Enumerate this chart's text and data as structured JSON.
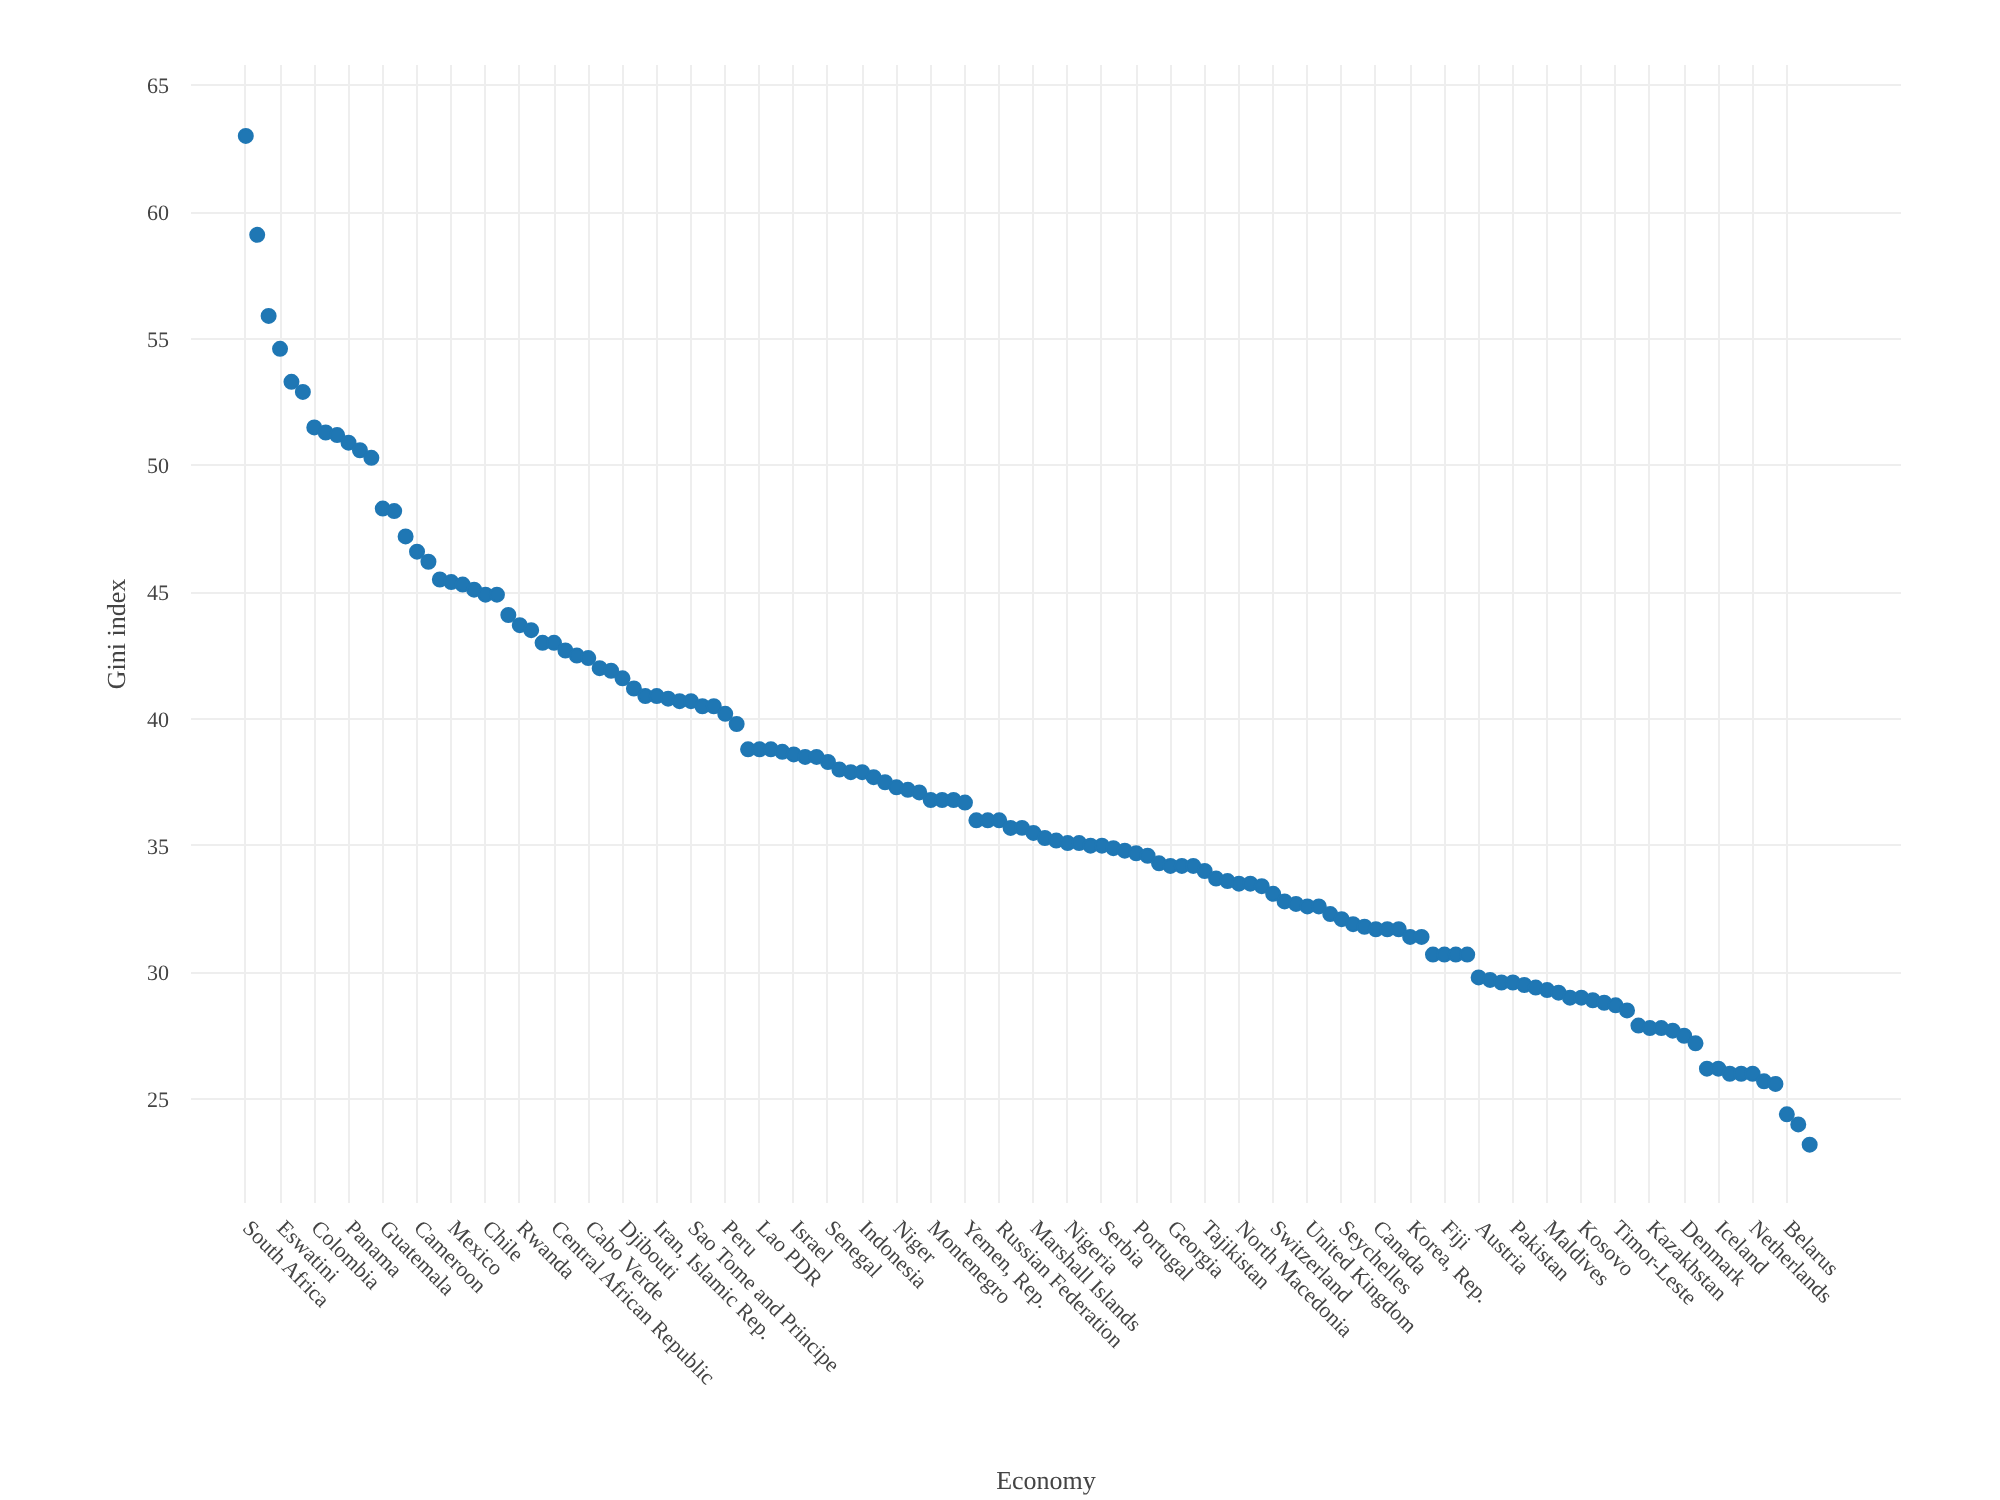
{
  "chart_data": {
    "type": "scatter",
    "xlabel": "Economy",
    "ylabel": "Gini index",
    "categories": [
      "South Africa",
      null,
      null,
      "Eswatini",
      null,
      null,
      "Colombia",
      null,
      null,
      "Panama",
      null,
      null,
      "Guatemala",
      null,
      null,
      "Cameroon",
      null,
      null,
      "Mexico",
      null,
      null,
      "Chile",
      null,
      null,
      "Rwanda",
      null,
      null,
      "Central African Republic",
      null,
      null,
      "Cabo Verde",
      null,
      null,
      "Djibouti",
      null,
      null,
      "Iran, Islamic Rep.",
      null,
      null,
      "Sao Tome and Principe",
      null,
      null,
      "Peru",
      null,
      null,
      "Lao PDR",
      null,
      null,
      "Israel",
      null,
      null,
      "Senegal",
      null,
      null,
      "Indonesia",
      null,
      null,
      "Niger",
      null,
      null,
      "Montenegro",
      null,
      null,
      "Yemen, Rep.",
      null,
      null,
      "Russian Federation",
      null,
      null,
      "Marshall Islands",
      null,
      null,
      "Nigeria",
      null,
      null,
      "Serbia",
      null,
      null,
      "Portugal",
      null,
      null,
      "Georgia",
      null,
      null,
      "Tajikistan",
      null,
      null,
      "North Macedonia",
      null,
      null,
      "Switzerland",
      null,
      null,
      "United Kingdom",
      null,
      null,
      "Seychelles",
      null,
      null,
      "Canada",
      null,
      null,
      "Korea, Rep.",
      null,
      null,
      "Fiji",
      null,
      null,
      "Austria",
      null,
      null,
      "Pakistan",
      null,
      null,
      "Maldives",
      null,
      null,
      "Kosovo",
      null,
      null,
      "Timor-Leste",
      null,
      null,
      "Kazakhstan",
      null,
      null,
      "Denmark",
      null,
      null,
      "Iceland",
      null,
      null,
      "Netherlands",
      null,
      null,
      "Belarus",
      null,
      null
    ],
    "series": [
      {
        "color": "#1f77b4",
        "values": [
          63.0,
          59.1,
          55.9,
          54.6,
          53.3,
          52.9,
          51.5,
          51.3,
          51.2,
          50.9,
          50.6,
          50.3,
          48.3,
          48.2,
          47.2,
          46.6,
          46.2,
          45.5,
          45.4,
          45.3,
          45.1,
          44.9,
          44.9,
          44.1,
          43.7,
          43.5,
          43.0,
          43.0,
          42.7,
          42.5,
          42.4,
          42.0,
          41.9,
          41.6,
          41.2,
          40.9,
          40.9,
          40.8,
          40.7,
          40.7,
          40.5,
          40.5,
          40.2,
          39.8,
          38.8,
          38.8,
          38.8,
          38.7,
          38.6,
          38.5,
          38.5,
          38.3,
          38.0,
          37.9,
          37.9,
          37.7,
          37.5,
          37.3,
          37.2,
          37.1,
          36.8,
          36.8,
          36.8,
          36.7,
          36.0,
          36.0,
          36.0,
          35.7,
          35.7,
          35.5,
          35.3,
          35.2,
          35.1,
          35.1,
          35.0,
          35.0,
          34.9,
          34.8,
          34.7,
          34.6,
          34.3,
          34.2,
          34.2,
          34.2,
          34.0,
          33.7,
          33.6,
          33.5,
          33.5,
          33.4,
          33.1,
          32.8,
          32.7,
          32.6,
          32.6,
          32.3,
          32.1,
          31.9,
          31.8,
          31.7,
          31.7,
          31.7,
          31.4,
          31.4,
          30.7,
          30.7,
          30.7,
          30.7,
          29.8,
          29.7,
          29.6,
          29.6,
          29.5,
          29.4,
          29.3,
          29.2,
          29.0,
          29.0,
          28.9,
          28.8,
          28.7,
          28.5,
          27.9,
          27.8,
          27.8,
          27.7,
          27.5,
          27.2,
          26.2,
          26.2,
          26.0,
          26.0,
          26.0,
          25.7,
          25.6,
          24.4,
          24.0,
          23.2
        ]
      }
    ],
    "ylim": [
      20.9,
      65.8
    ],
    "yticks": [
      25,
      30,
      35,
      40,
      45,
      50,
      55,
      60,
      65
    ],
    "grid": true,
    "marker": "circle"
  }
}
